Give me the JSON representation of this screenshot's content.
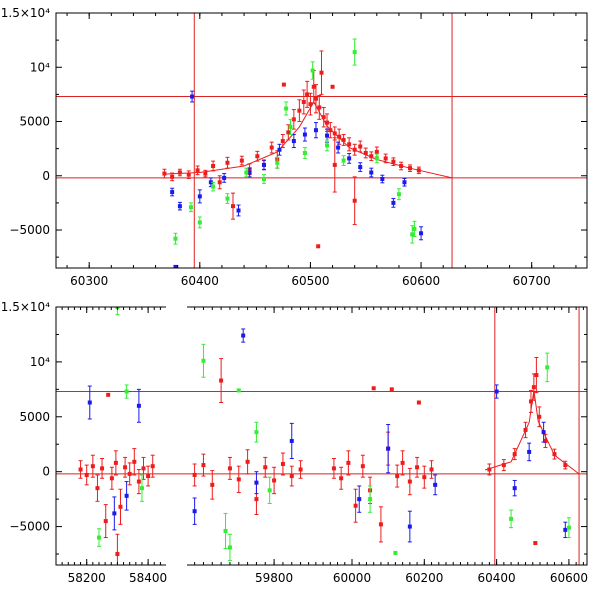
{
  "colors": {
    "red": "#ee1c1c",
    "blue": "#1a1aee",
    "green": "#33ee33",
    "reference_line": "#dd2222",
    "frame": "#000000"
  },
  "chart_data": [
    {
      "type": "scatter",
      "title": "",
      "xlabel": "",
      "ylabel": "",
      "xlim": [
        60270,
        60750
      ],
      "ylim": [
        -8500,
        15000
      ],
      "grid": false,
      "x_ticks": [
        60300,
        60400,
        60500,
        60600,
        60700
      ],
      "x_tick_labels": [
        "60300",
        "60400",
        "60500",
        "60600",
        "60700"
      ],
      "y_ticks": [
        -5000,
        0,
        5000,
        10000,
        15000
      ],
      "y_tick_labels": [
        "−5000",
        "0",
        "5000",
        "10⁴",
        "1.5×10⁴"
      ],
      "reference_lines": {
        "vertical": [
          60395,
          60628
        ],
        "horizontal": [
          7300,
          -200
        ]
      },
      "model_curve": [
        [
          60368,
          150
        ],
        [
          60400,
          300
        ],
        [
          60440,
          900
        ],
        [
          60470,
          2200
        ],
        [
          60490,
          4500
        ],
        [
          60503,
          6800
        ],
        [
          60515,
          4600
        ],
        [
          60535,
          2600
        ],
        [
          60560,
          1500
        ],
        [
          60590,
          700
        ],
        [
          60628,
          -200
        ]
      ],
      "series": [
        {
          "color": "red",
          "points": [
            [
              60368,
              200,
              400
            ],
            [
              60375,
              -100,
              350
            ],
            [
              60382,
              300,
              300
            ],
            [
              60390,
              100,
              350
            ],
            [
              60398,
              500,
              400
            ],
            [
              60405,
              200,
              300
            ],
            [
              60412,
              900,
              450
            ],
            [
              60418,
              -600,
              600
            ],
            [
              60425,
              1200,
              500
            ],
            [
              60430,
              -2800,
              1200
            ],
            [
              60438,
              1400,
              400
            ],
            [
              60445,
              600,
              500
            ],
            [
              60452,
              1800,
              450
            ],
            [
              60458,
              1000,
              400
            ],
            [
              60465,
              2600,
              500
            ],
            [
              60470,
              1500,
              800
            ],
            [
              60475,
              3200,
              600
            ],
            [
              60480,
              4000,
              700
            ],
            [
              60485,
              5200,
              900
            ],
            [
              60490,
              6000,
              1000
            ],
            [
              60494,
              6800,
              1100
            ],
            [
              60497,
              7500,
              1200
            ],
            [
              60500,
              6600,
              1000
            ],
            [
              60503,
              8200,
              1500
            ],
            [
              60505,
              7100,
              1300
            ],
            [
              60508,
              6300,
              1100
            ],
            [
              60510,
              9500,
              2000
            ],
            [
              60512,
              5400,
              900
            ],
            [
              60515,
              4900,
              800
            ],
            [
              60518,
              4200,
              700
            ],
            [
              60522,
              3900,
              600
            ],
            [
              60526,
              3600,
              700
            ],
            [
              60530,
              3300,
              500
            ],
            [
              60535,
              2900,
              600
            ],
            [
              60540,
              2400,
              500
            ],
            [
              60545,
              2700,
              500
            ],
            [
              60550,
              2100,
              450
            ],
            [
              60555,
              1800,
              400
            ],
            [
              60560,
              2200,
              450
            ],
            [
              60568,
              1600,
              400
            ],
            [
              60575,
              1300,
              350
            ],
            [
              60582,
              900,
              350
            ],
            [
              60590,
              700,
              300
            ],
            [
              60598,
              500,
              300
            ],
            [
              60507,
              -6500,
              0
            ],
            [
              60522,
              1000,
              2500
            ],
            [
              60540,
              -2300,
              2200
            ],
            [
              60476,
              8400,
              0
            ],
            [
              60520,
              8200,
              0
            ]
          ]
        },
        {
          "color": "blue",
          "points": [
            [
              60375,
              -1500,
              350
            ],
            [
              60382,
              -2800,
              350
            ],
            [
              60393,
              7300,
              500
            ],
            [
              60400,
              -1900,
              600
            ],
            [
              60410,
              -600,
              400
            ],
            [
              60422,
              -200,
              400
            ],
            [
              60435,
              -3200,
              500
            ],
            [
              60445,
              300,
              400
            ],
            [
              60458,
              1000,
              450
            ],
            [
              60472,
              2400,
              500
            ],
            [
              60485,
              3200,
              600
            ],
            [
              60495,
              3800,
              600
            ],
            [
              60505,
              4200,
              700
            ],
            [
              60515,
              3700,
              600
            ],
            [
              60525,
              2600,
              500
            ],
            [
              60535,
              1600,
              450
            ],
            [
              60545,
              800,
              400
            ],
            [
              60555,
              300,
              400
            ],
            [
              60565,
              -300,
              350
            ],
            [
              60575,
              -2500,
              400
            ],
            [
              60585,
              -600,
              350
            ],
            [
              60600,
              -5300,
              600
            ],
            [
              60378,
              -8400,
              0
            ]
          ]
        },
        {
          "color": "green",
          "points": [
            [
              60378,
              -5800,
              500
            ],
            [
              60392,
              -2900,
              400
            ],
            [
              60400,
              -4300,
              500
            ],
            [
              60412,
              -1000,
              400
            ],
            [
              60425,
              -2100,
              450
            ],
            [
              60442,
              300,
              400
            ],
            [
              60458,
              -300,
              400
            ],
            [
              60470,
              1200,
              500
            ],
            [
              60482,
              4500,
              700
            ],
            [
              60495,
              2100,
              500
            ],
            [
              60502,
              9700,
              800
            ],
            [
              60515,
              2800,
              500
            ],
            [
              60530,
              1400,
              450
            ],
            [
              60540,
              11400,
              1200
            ],
            [
              60560,
              1600,
              400
            ],
            [
              60580,
              -1700,
              500
            ],
            [
              60592,
              -5400,
              800
            ],
            [
              60594,
              -4900,
              700
            ],
            [
              60478,
              6200,
              600
            ]
          ]
        }
      ]
    },
    {
      "type": "scatter",
      "title": "",
      "xlabel": "",
      "ylabel": "",
      "xlim": [
        58100,
        60650
      ],
      "ylim": [
        -8500,
        15000
      ],
      "grid": false,
      "x_ticks": [
        58200,
        58400,
        59800,
        60000,
        60200,
        60400,
        60600
      ],
      "x_tick_labels": [
        "58200",
        "58400",
        "59800",
        "60000",
        "60200",
        "60400",
        "60600"
      ],
      "x_axis_segments": [
        [
          58100,
          58455
        ],
        [
          59605,
          60650
        ]
      ],
      "y_ticks": [
        -5000,
        0,
        5000,
        10000,
        15000
      ],
      "y_tick_labels": [
        "−5000",
        "0",
        "5000",
        "10⁴",
        "1.5×10⁴"
      ],
      "reference_lines": {
        "vertical": [
          60395,
          60628
        ],
        "horizontal": [
          7300,
          -200
        ]
      },
      "model_curve": [
        [
          60368,
          150
        ],
        [
          60440,
          900
        ],
        [
          60490,
          4500
        ],
        [
          60503,
          7400
        ],
        [
          60515,
          4600
        ],
        [
          60560,
          1500
        ],
        [
          60628,
          -200
        ]
      ],
      "series": [
        {
          "color": "red",
          "points": [
            [
              58180,
              200,
              800
            ],
            [
              58200,
              -300,
              900
            ],
            [
              58220,
              500,
              1000
            ],
            [
              58235,
              -1500,
              1200
            ],
            [
              58250,
              300,
              900
            ],
            [
              58262,
              -4500,
              1500
            ],
            [
              58270,
              7000,
              0
            ],
            [
              58282,
              -600,
              1000
            ],
            [
              58295,
              800,
              1100
            ],
            [
              58300,
              -7500,
              1800
            ],
            [
              58310,
              -3200,
              1600
            ],
            [
              58325,
              400,
              900
            ],
            [
              58340,
              -200,
              1000
            ],
            [
              58355,
              900,
              1200
            ],
            [
              58370,
              -900,
              1100
            ],
            [
              58385,
              300,
              1000
            ],
            [
              58400,
              -400,
              900
            ],
            [
              58415,
              500,
              1000
            ],
            [
              59620,
              -300,
              1000
            ],
            [
              59640,
              600,
              1000
            ],
            [
              59660,
              -1200,
              1300
            ],
            [
              59680,
              8300,
              2000
            ],
            [
              59700,
              300,
              1000
            ],
            [
              59720,
              -700,
              1200
            ],
            [
              59740,
              900,
              1100
            ],
            [
              59760,
              -2500,
              1400
            ],
            [
              59780,
              400,
              900
            ],
            [
              59800,
              -800,
              1200
            ],
            [
              59820,
              700,
              1000
            ],
            [
              59840,
              -400,
              900
            ],
            [
              59860,
              200,
              800
            ],
            [
              59950,
              300,
              900
            ],
            [
              59970,
              -600,
              1000
            ],
            [
              59990,
              800,
              1100
            ],
            [
              60010,
              -3100,
              1500
            ],
            [
              60030,
              500,
              1000
            ],
            [
              60050,
              -1700,
              1200
            ],
            [
              60060,
              7600,
              0
            ],
            [
              60080,
              -4800,
              1600
            ],
            [
              60100,
              2100,
              1500
            ],
            [
              60110,
              7500,
              0
            ],
            [
              60125,
              -400,
              1000
            ],
            [
              60140,
              800,
              1100
            ],
            [
              60160,
              -900,
              1200
            ],
            [
              60180,
              400,
              900
            ],
            [
              60185,
              6300,
              0
            ],
            [
              60200,
              -500,
              1000
            ],
            [
              60220,
              200,
              800
            ],
            [
              60380,
              200,
              500
            ],
            [
              60420,
              600,
              500
            ],
            [
              60450,
              1600,
              500
            ],
            [
              60480,
              3800,
              700
            ],
            [
              60495,
              6400,
              1000
            ],
            [
              60503,
              7700,
              1200
            ],
            [
              60510,
              8800,
              1600
            ],
            [
              60518,
              5000,
              900
            ],
            [
              60535,
              2800,
              600
            ],
            [
              60560,
              1600,
              450
            ],
            [
              60590,
              600,
              350
            ],
            [
              60507,
              -6500,
              0
            ]
          ]
        },
        {
          "color": "blue",
          "points": [
            [
              58210,
              6300,
              1500
            ],
            [
              58290,
              -3800,
              1500
            ],
            [
              58330,
              -2200,
              1300
            ],
            [
              58370,
              6000,
              1500
            ],
            [
              59620,
              -3600,
              1200
            ],
            [
              59730,
              12400,
              600
            ],
            [
              59760,
              -1000,
              1000
            ],
            [
              59840,
              2800,
              1600
            ],
            [
              60020,
              -2500,
              1200
            ],
            [
              60100,
              2100,
              2200
            ],
            [
              60160,
              -5000,
              1400
            ],
            [
              60230,
              -1200,
              900
            ],
            [
              60400,
              7300,
              600
            ],
            [
              60450,
              -1500,
              700
            ],
            [
              60490,
              1800,
              800
            ],
            [
              60530,
              3600,
              900
            ],
            [
              60590,
              -5300,
              700
            ]
          ]
        },
        {
          "color": "green",
          "points": [
            [
              58240,
              -6000,
              800
            ],
            [
              58300,
              15000,
              700
            ],
            [
              58330,
              7300,
              600
            ],
            [
              58380,
              -1500,
              1200
            ],
            [
              59640,
              10100,
              1500
            ],
            [
              59690,
              -5400,
              1600
            ],
            [
              59700,
              -6900,
              1200
            ],
            [
              59720,
              7400,
              0
            ],
            [
              59760,
              3600,
              900
            ],
            [
              59790,
              -1700,
              1200
            ],
            [
              60050,
              -2500,
              1200
            ],
            [
              60120,
              -7400,
              0
            ],
            [
              60440,
              -4300,
              800
            ],
            [
              60540,
              9500,
              1300
            ],
            [
              60600,
              -5100,
              900
            ]
          ]
        }
      ]
    }
  ]
}
